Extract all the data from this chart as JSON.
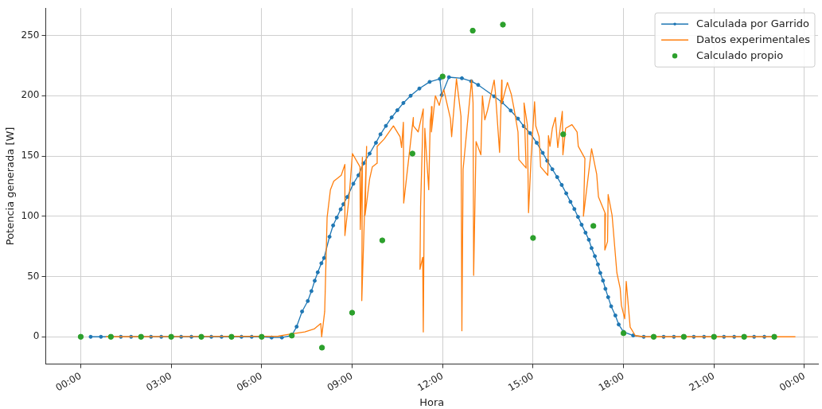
{
  "chart_data": {
    "type": "line",
    "xlabel": "Hora",
    "ylabel": "Potencia generada [W]",
    "xlim": [
      -1.16,
      24.45
    ],
    "ylim": [
      -22.7,
      272.7
    ],
    "xticks": [
      {
        "value": 0,
        "label": "00:00"
      },
      {
        "value": 3,
        "label": "03:00"
      },
      {
        "value": 6,
        "label": "06:00"
      },
      {
        "value": 9,
        "label": "09:00"
      },
      {
        "value": 12,
        "label": "12:00"
      },
      {
        "value": 15,
        "label": "15:00"
      },
      {
        "value": 18,
        "label": "18:00"
      },
      {
        "value": 21,
        "label": "21:00"
      },
      {
        "value": 24,
        "label": "00:00"
      }
    ],
    "yticks": [
      0,
      50,
      100,
      150,
      200,
      250
    ],
    "grid": true,
    "legend": "top right",
    "line_style": "solid",
    "series": [
      {
        "name": "Calculada por Garrido",
        "marker": "circle",
        "color": "#1f77b4",
        "x": [
          0.33,
          0.67,
          1,
          1.33,
          1.67,
          2,
          2.33,
          2.67,
          3,
          3.33,
          3.67,
          4,
          4.33,
          4.67,
          5,
          5.33,
          5.67,
          6,
          6.33,
          6.67,
          7,
          7.16,
          7.34,
          7.53,
          7.65,
          7.76,
          7.86,
          7.98,
          8.07,
          8.25,
          8.37,
          8.49,
          8.62,
          8.71,
          8.84,
          9.04,
          9.21,
          9.38,
          9.58,
          9.79,
          9.94,
          10.12,
          10.31,
          10.5,
          10.7,
          10.94,
          11.23,
          11.57,
          11.91,
          11.97,
          12.21,
          12.64,
          12.95,
          13.18,
          13.71,
          13.97,
          14.26,
          14.5,
          14.69,
          14.9,
          15.12,
          15.32,
          15.47,
          15.64,
          15.8,
          15.95,
          16.1,
          16.24,
          16.37,
          16.49,
          16.61,
          16.74,
          16.85,
          16.94,
          17.05,
          17.15,
          17.23,
          17.32,
          17.4,
          17.49,
          17.59,
          17.73,
          17.84,
          18,
          18.32,
          18.67,
          19,
          19.33,
          19.67,
          20,
          20.33,
          20.67,
          21,
          21.33,
          21.67,
          22,
          22.33,
          22.67,
          23
        ],
        "values": [
          0,
          0,
          0,
          0,
          0,
          0,
          0,
          0,
          0,
          0,
          0,
          0,
          0,
          0,
          0,
          0,
          0,
          0,
          -0.6,
          -0.6,
          1.1,
          8.4,
          21,
          29.7,
          37.9,
          46.5,
          53.5,
          61,
          65.4,
          83,
          92.4,
          98.9,
          105.8,
          110,
          116,
          127,
          134,
          144,
          152,
          161,
          168,
          175,
          182,
          188,
          194,
          200,
          206,
          211.5,
          214,
          200.6,
          215.4,
          214.5,
          212,
          209,
          199.5,
          194.6,
          187.7,
          181,
          174.7,
          169,
          161,
          152.6,
          146,
          139,
          132.5,
          126,
          119,
          112,
          106,
          99.5,
          93,
          86.4,
          80.5,
          73.6,
          66.9,
          60,
          53,
          46.6,
          39.8,
          32.9,
          25.3,
          17.7,
          10.2,
          4.1,
          1.1,
          0,
          0,
          0,
          0,
          0,
          0,
          0,
          0,
          0,
          0,
          0,
          0,
          0,
          0
        ]
      },
      {
        "name": "Datos experimentales",
        "marker": "none",
        "color": "#ff7f0e",
        "x": [
          0.83,
          6.55,
          6.9,
          7.43,
          7.74,
          7.96,
          7.99,
          8.09,
          8.17,
          8.28,
          8.39,
          8.64,
          8.76,
          8.76,
          8.9,
          9.01,
          9.26,
          9.27,
          9.34,
          9.32,
          9.48,
          9.43,
          9.58,
          9.67,
          9.82,
          9.83,
          10.06,
          10.37,
          10.59,
          10.64,
          10.7,
          10.71,
          11.03,
          11.03,
          11.19,
          11.36,
          11.27,
          11.25,
          11.34,
          11.36,
          11.41,
          11.54,
          11.59,
          11.65,
          11.63,
          11.76,
          11.89,
          11.98,
          12.04,
          12.26,
          12.3,
          12.39,
          12.46,
          12.61,
          12.64,
          12.68,
          12.96,
          13.01,
          13.03,
          13.11,
          13.27,
          13.32,
          13.4,
          13.49,
          13.71,
          13.75,
          13.89,
          13.96,
          13.97,
          14.15,
          14.28,
          14.37,
          14.5,
          14.53,
          14.77,
          14.7,
          14.81,
          14.85,
          14.94,
          15.05,
          15.09,
          15.2,
          15.25,
          15.49,
          15.51,
          15.56,
          15.64,
          15.74,
          15.82,
          15.97,
          15.99,
          16.08,
          16.29,
          16.46,
          16.5,
          16.72,
          16.67,
          16.94,
          17.11,
          17.17,
          17.4,
          17.38,
          17.47,
          17.49,
          17.62,
          17.78,
          17.89,
          17.93,
          18.04,
          18.09,
          18.22,
          18.39,
          18.68,
          23.7
        ],
        "values": [
          0,
          0.5,
          2,
          4,
          6.5,
          11,
          0,
          21,
          99,
          122,
          129,
          134,
          143,
          84,
          116,
          152,
          141,
          89,
          149,
          30,
          158,
          101,
          131,
          141,
          144,
          158,
          164,
          175,
          166,
          157,
          178,
          111,
          182,
          175,
          170,
          189,
          108,
          56,
          66,
          4,
          173,
          122,
          179,
          191,
          170,
          200,
          192,
          201,
          205,
          181,
          166,
          194,
          214,
          183,
          5,
          139,
          213,
          194,
          51,
          162,
          151,
          200,
          180,
          188,
          213,
          203,
          153,
          213,
          194,
          211,
          201,
          189,
          170,
          147,
          140,
          194,
          176,
          103,
          151,
          195,
          175,
          166,
          141,
          134,
          167,
          158,
          173,
          182,
          157,
          187,
          151,
          173,
          176,
          170,
          158,
          148,
          100,
          156,
          135,
          116,
          102,
          72,
          79,
          118,
          101,
          53,
          40,
          26,
          15,
          46,
          8,
          1,
          0,
          0
        ]
      },
      {
        "name": "Calculado propio",
        "type": "scatter",
        "marker": "circle",
        "color": "#2ca02c",
        "x": [
          0,
          1,
          2,
          3,
          4,
          5,
          6,
          7,
          8,
          9,
          10,
          11,
          12,
          13,
          14,
          15,
          16,
          17,
          18,
          19,
          20,
          21,
          22,
          23
        ],
        "values": [
          0,
          0,
          0,
          0,
          0,
          0,
          0,
          1,
          -9,
          20,
          80,
          152,
          216,
          254,
          259,
          82,
          168,
          92,
          3,
          0,
          0,
          0,
          0,
          0
        ]
      }
    ]
  }
}
